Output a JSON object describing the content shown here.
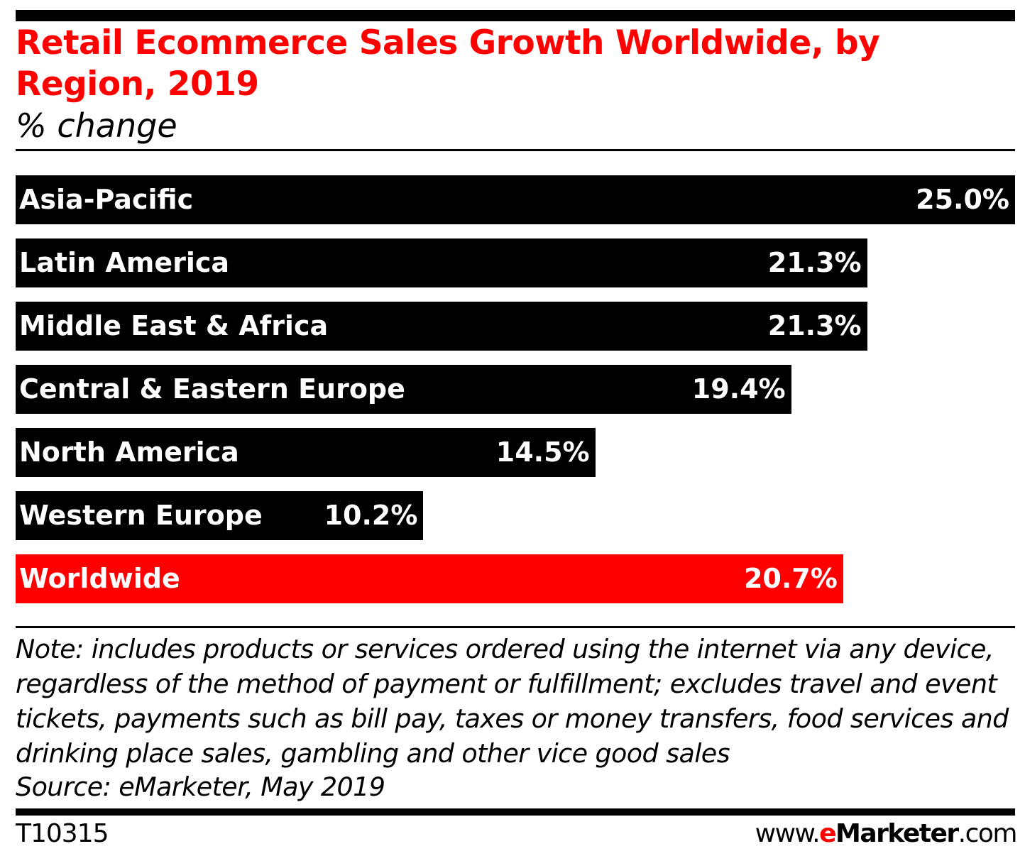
{
  "chart_data": {
    "type": "bar",
    "orientation": "horizontal",
    "title": "Retail Ecommerce Sales Growth Worldwide, by Region, 2019",
    "subtitle": "% change",
    "categories": [
      "Asia-Pacific",
      "Latin America",
      "Middle East & Africa",
      "Central & Eastern Europe",
      "North America",
      "Western Europe",
      "Worldwide"
    ],
    "values": [
      25.0,
      21.3,
      21.3,
      19.4,
      14.5,
      10.2,
      20.7
    ],
    "value_labels": [
      "25.0%",
      "21.3%",
      "21.3%",
      "19.4%",
      "14.5%",
      "10.2%",
      "20.7%"
    ],
    "xlim": [
      0,
      25
    ],
    "grid": false,
    "colors": {
      "default": "#000000",
      "highlight": "#ff0000",
      "highlight_category": "Worldwide",
      "title": "#ff0000"
    }
  },
  "note": "Note: includes products or services ordered using the internet via any device, regardless of the method of payment or fulfillment; excludes travel and event tickets, payments such as bill pay, taxes or money transfers, food services and drinking place sales, gambling and other vice good sales",
  "source": "Source: eMarketer, May 2019",
  "footer": {
    "code": "T10315",
    "site_prefix": "www.",
    "site_e": "e",
    "site_brand": "Marketer",
    "site_suffix": ".com"
  }
}
